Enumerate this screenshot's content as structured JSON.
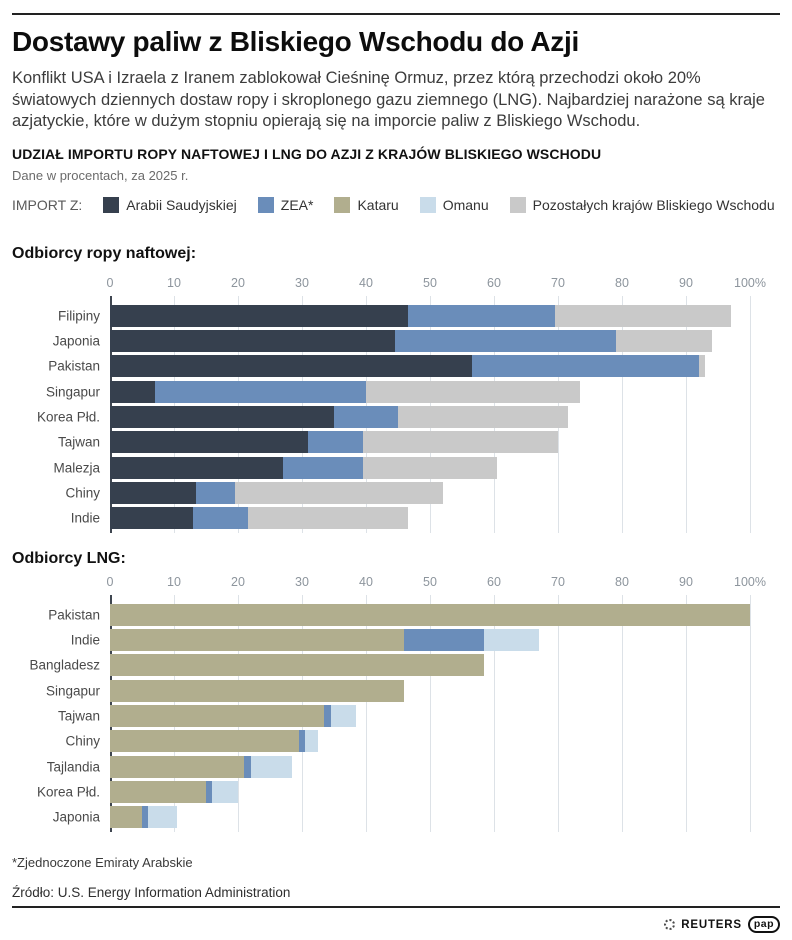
{
  "header": {
    "title": "Dostawy paliw z Bliskiego Wschodu do Azji",
    "intro": "Konflikt USA i Izraela z Iranem zablokował Cieśninę Ormuz, przez którą przechodzi około 20% światowych dziennych dostaw ropy i skroplonego gazu ziemnego (LNG). Najbardziej narażone są kraje azjatyckie, które w dużym stopniu opierają się na imporcie paliw z Bliskiego Wschodu."
  },
  "section": {
    "title": "UDZIAŁ IMPORTU ROPY NAFTOWEJ I LNG DO AZJI Z KRAJÓW BLISKIEGO WSCHODU",
    "note": "Dane w procentach, za 2025 r."
  },
  "legend": {
    "prefix": "IMPORT Z:",
    "items": [
      {
        "key": "saudi",
        "label": "Arabii Saudyjskiej",
        "color": "#36404e"
      },
      {
        "key": "zea",
        "label": "ZEA*",
        "color": "#6a8dba"
      },
      {
        "key": "qatar",
        "label": "Kataru",
        "color": "#b1ae8e"
      },
      {
        "key": "oman",
        "label": "Omanu",
        "color": "#c9dcea"
      },
      {
        "key": "rest",
        "label": "Pozostałych krajów Bliskiego Wschodu",
        "color": "#c9c9c9"
      }
    ]
  },
  "chart_data": [
    {
      "type": "bar",
      "orientation": "horizontal",
      "stacked": true,
      "title": "Odbiorcy ropy naftowej:",
      "xlim": [
        0,
        100
      ],
      "grid": true,
      "ticks": [
        "0",
        "10",
        "20",
        "30",
        "40",
        "50",
        "60",
        "70",
        "80",
        "90",
        "100%"
      ],
      "unit": "percent",
      "rows": [
        {
          "label": "Filipiny",
          "segments": [
            {
              "key": "saudi",
              "value": 46.5
            },
            {
              "key": "zea",
              "value": 23
            },
            {
              "key": "rest",
              "value": 27.5
            }
          ]
        },
        {
          "label": "Japonia",
          "segments": [
            {
              "key": "saudi",
              "value": 44.5
            },
            {
              "key": "zea",
              "value": 34.5
            },
            {
              "key": "rest",
              "value": 15
            }
          ]
        },
        {
          "label": "Pakistan",
          "segments": [
            {
              "key": "saudi",
              "value": 56.5
            },
            {
              "key": "zea",
              "value": 35.5
            },
            {
              "key": "rest",
              "value": 1
            }
          ]
        },
        {
          "label": "Singapur",
          "segments": [
            {
              "key": "saudi",
              "value": 7
            },
            {
              "key": "zea",
              "value": 33
            },
            {
              "key": "rest",
              "value": 33.5
            }
          ]
        },
        {
          "label": "Korea Płd.",
          "segments": [
            {
              "key": "saudi",
              "value": 35
            },
            {
              "key": "zea",
              "value": 10
            },
            {
              "key": "rest",
              "value": 26.5
            }
          ]
        },
        {
          "label": "Tajwan",
          "segments": [
            {
              "key": "saudi",
              "value": 31
            },
            {
              "key": "zea",
              "value": 8.5
            },
            {
              "key": "rest",
              "value": 30.5
            }
          ]
        },
        {
          "label": "Malezja",
          "segments": [
            {
              "key": "saudi",
              "value": 27
            },
            {
              "key": "zea",
              "value": 12.5
            },
            {
              "key": "rest",
              "value": 21
            }
          ]
        },
        {
          "label": "Chiny",
          "segments": [
            {
              "key": "saudi",
              "value": 13.5
            },
            {
              "key": "zea",
              "value": 6
            },
            {
              "key": "rest",
              "value": 32.5
            }
          ]
        },
        {
          "label": "Indie",
          "segments": [
            {
              "key": "saudi",
              "value": 13
            },
            {
              "key": "zea",
              "value": 8.5
            },
            {
              "key": "rest",
              "value": 25
            }
          ]
        }
      ]
    },
    {
      "type": "bar",
      "orientation": "horizontal",
      "stacked": true,
      "title": "Odbiorcy LNG:",
      "xlim": [
        0,
        100
      ],
      "grid": true,
      "ticks": [
        "0",
        "10",
        "20",
        "30",
        "40",
        "50",
        "60",
        "70",
        "80",
        "90",
        "100%"
      ],
      "unit": "percent",
      "rows": [
        {
          "label": "Pakistan",
          "segments": [
            {
              "key": "qatar",
              "value": 100
            }
          ]
        },
        {
          "label": "Indie",
          "segments": [
            {
              "key": "qatar",
              "value": 46
            },
            {
              "key": "zea",
              "value": 12.5
            },
            {
              "key": "oman",
              "value": 8.5
            }
          ]
        },
        {
          "label": "Bangladesz",
          "segments": [
            {
              "key": "qatar",
              "value": 58.5
            }
          ]
        },
        {
          "label": "Singapur",
          "segments": [
            {
              "key": "qatar",
              "value": 46
            }
          ]
        },
        {
          "label": "Tajwan",
          "segments": [
            {
              "key": "qatar",
              "value": 33.5
            },
            {
              "key": "zea",
              "value": 1
            },
            {
              "key": "oman",
              "value": 4
            }
          ]
        },
        {
          "label": "Chiny",
          "segments": [
            {
              "key": "qatar",
              "value": 29.5
            },
            {
              "key": "zea",
              "value": 1
            },
            {
              "key": "oman",
              "value": 2
            }
          ]
        },
        {
          "label": "Tajlandia",
          "segments": [
            {
              "key": "qatar",
              "value": 21
            },
            {
              "key": "zea",
              "value": 1
            },
            {
              "key": "oman",
              "value": 6.5
            }
          ]
        },
        {
          "label": "Korea Płd.",
          "segments": [
            {
              "key": "qatar",
              "value": 15
            },
            {
              "key": "zea",
              "value": 1
            },
            {
              "key": "oman",
              "value": 4
            }
          ]
        },
        {
          "label": "Japonia",
          "segments": [
            {
              "key": "qatar",
              "value": 5
            },
            {
              "key": "zea",
              "value": 1
            },
            {
              "key": "oman",
              "value": 4.5
            }
          ]
        }
      ]
    }
  ],
  "footer": {
    "footnote": "*Zjednoczone Emiraty Arabskie",
    "source": "Źródło: U.S. Energy Information Administration",
    "reuters": "REUTERS",
    "pap": "pap"
  }
}
